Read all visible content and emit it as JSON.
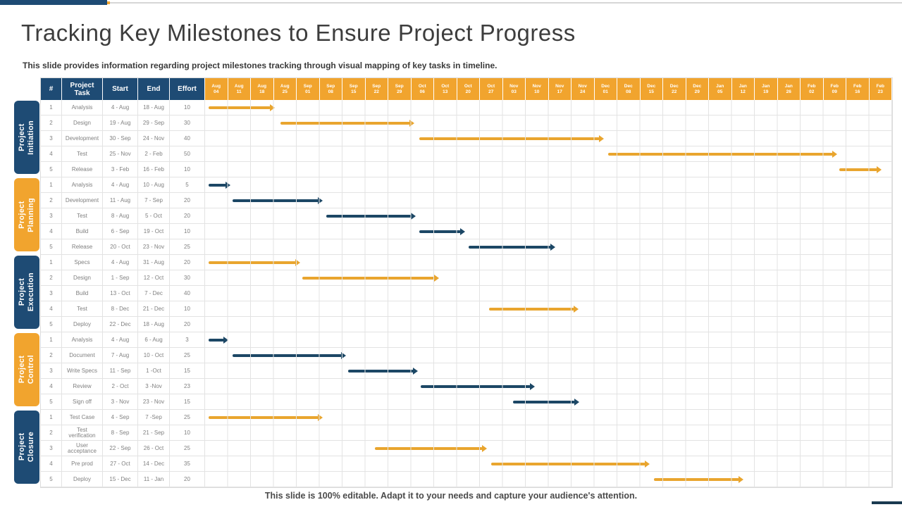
{
  "slide": {
    "title": "Tracking Key Milestones to Ensure Project Progress",
    "subtitle": "This slide provides information regarding project milestones tracking through visual mapping of key tasks in timeline.",
    "footer": "This slide is 100% editable. Adapt it to your needs and capture your audience's attention."
  },
  "colors": {
    "navy": "#1E4B74",
    "gold": "#F1A42E",
    "bar_navy": "#1C4765",
    "bar_gold": "#E9A52E",
    "grid": "#E3E3E3"
  },
  "chart_data": {
    "type": "table",
    "subtype": "gantt",
    "title": "Tracking Key Milestones to Ensure Project Progress",
    "columns": [
      "#",
      "Project Task",
      "Start",
      "End",
      "Effort"
    ],
    "week_columns": [
      "Aug 04",
      "Aug 11",
      "Aug 18",
      "Aug 25",
      "Sep 01",
      "Sep 08",
      "Sep 15",
      "Sep 22",
      "Sep 29",
      "Oct 06",
      "Oct 13",
      "Oct 20",
      "Oct 27",
      "Nov 03",
      "Nov 10",
      "Nov 17",
      "Nov 24",
      "Dec 01",
      "Dec 08",
      "Dec 15",
      "Dec 22",
      "Dec 29",
      "Jan 05",
      "Jan 12",
      "Jan 19",
      "Jan 26",
      "Feb 02",
      "Feb 09",
      "Feb 16",
      "Feb 23"
    ],
    "sections": [
      {
        "name": "Project Initiation",
        "accent": "navy",
        "rows": [
          {
            "num": "1",
            "task": "Analysis",
            "start": "4 - Aug",
            "end": "18 - Aug",
            "effort": "10",
            "bar": {
              "from": 0.15,
              "to": 3.05,
              "color": "gold"
            }
          },
          {
            "num": "2",
            "task": "Design",
            "start": "19 - Aug",
            "end": "29 - Sep",
            "effort": "30",
            "bar": {
              "from": 3.3,
              "to": 9.15,
              "color": "gold"
            }
          },
          {
            "num": "3",
            "task": "Development",
            "start": "30 - Sep",
            "end": "24 - Nov",
            "effort": "40",
            "bar": {
              "from": 9.35,
              "to": 17.4,
              "color": "gold"
            }
          },
          {
            "num": "4",
            "task": "Test",
            "start": "25 - Nov",
            "end": "2 - Feb",
            "effort": "50",
            "bar": {
              "from": 17.6,
              "to": 27.6,
              "color": "gold"
            }
          },
          {
            "num": "5",
            "task": "Release",
            "start": "3 - Feb",
            "end": "16 - Feb",
            "effort": "10",
            "bar": {
              "from": 27.7,
              "to": 29.55,
              "color": "gold"
            }
          }
        ]
      },
      {
        "name": "Project Planning",
        "accent": "gold",
        "rows": [
          {
            "num": "1",
            "task": "Analysis",
            "start": "4 - Aug",
            "end": "10 - Aug",
            "effort": "5",
            "bar": {
              "from": 0.15,
              "to": 1.1,
              "color": "navy"
            }
          },
          {
            "num": "2",
            "task": "Development",
            "start": "11 - Aug",
            "end": "7 - Sep",
            "effort": "20",
            "bar": {
              "from": 1.2,
              "to": 5.15,
              "color": "navy"
            }
          },
          {
            "num": "3",
            "task": "Test",
            "start": "8 - Aug",
            "end": "5 - Oct",
            "effort": "20",
            "bar": {
              "from": 5.3,
              "to": 9.2,
              "color": "navy"
            }
          },
          {
            "num": "4",
            "task": "Build",
            "start": "6 - Sep",
            "end": "19 - Oct",
            "effort": "10",
            "bar": {
              "from": 9.35,
              "to": 11.35,
              "color": "navy"
            }
          },
          {
            "num": "5",
            "task": "Release",
            "start": "20 - Oct",
            "end": "23 - Nov",
            "effort": "25",
            "bar": {
              "from": 11.5,
              "to": 15.3,
              "color": "navy"
            }
          }
        ]
      },
      {
        "name": "Project Execution",
        "accent": "navy",
        "rows": [
          {
            "num": "1",
            "task": "Specs",
            "start": "4 - Aug",
            "end": "31 - Aug",
            "effort": "20",
            "bar": {
              "from": 0.15,
              "to": 4.15,
              "color": "gold"
            }
          },
          {
            "num": "2",
            "task": "Design",
            "start": "1 - Sep",
            "end": "12 - Oct",
            "effort": "30",
            "bar": {
              "from": 4.25,
              "to": 10.2,
              "color": "gold"
            }
          },
          {
            "num": "3",
            "task": "Build",
            "start": "13 - Oct",
            "end": "7 - Dec",
            "effort": "40",
            "bar": null
          },
          {
            "num": "4",
            "task": "Test",
            "start": "8 - Dec",
            "end": "21 - Dec",
            "effort": "10",
            "bar": {
              "from": 12.4,
              "to": 16.3,
              "color": "gold"
            }
          },
          {
            "num": "5",
            "task": "Deploy",
            "start": "22 - Dec",
            "end": "18 - Aug",
            "effort": "20",
            "bar": null
          }
        ]
      },
      {
        "name": "Project Control",
        "accent": "gold",
        "rows": [
          {
            "num": "1",
            "task": "Analysis",
            "start": "4 - Aug",
            "end": "6 - Aug",
            "effort": "3",
            "bar": {
              "from": 0.15,
              "to": 1.0,
              "color": "navy"
            }
          },
          {
            "num": "2",
            "task": "Document",
            "start": "7 - Aug",
            "end": "10 - Oct",
            "effort": "25",
            "bar": {
              "from": 1.2,
              "to": 6.15,
              "color": "navy"
            }
          },
          {
            "num": "3",
            "task": "Write Specs",
            "start": "11 - Sep",
            "end": "1 -Oct",
            "effort": "15",
            "bar": {
              "from": 6.25,
              "to": 9.3,
              "color": "navy"
            }
          },
          {
            "num": "4",
            "task": "Review",
            "start": "2 - Oct",
            "end": "3 -Nov",
            "effort": "23",
            "bar": {
              "from": 9.4,
              "to": 14.4,
              "color": "navy"
            }
          },
          {
            "num": "5",
            "task": "Sign off",
            "start": "3 - Nov",
            "end": "23 - Nov",
            "effort": "15",
            "bar": {
              "from": 13.45,
              "to": 16.35,
              "color": "navy"
            }
          }
        ]
      },
      {
        "name": "Project Closure",
        "accent": "navy",
        "rows": [
          {
            "num": "1",
            "task": "Test Case",
            "start": "4 - Sep",
            "end": "7 -Sep",
            "effort": "25",
            "bar": {
              "from": 0.15,
              "to": 5.15,
              "color": "gold"
            }
          },
          {
            "num": "2",
            "task": "Test verification",
            "start": "8 - Sep",
            "end": "21 - Sep",
            "effort": "10",
            "bar": null
          },
          {
            "num": "3",
            "task": "User acceptance",
            "start": "22 - Sep",
            "end": "26 - Oct",
            "effort": "25",
            "bar": {
              "from": 7.4,
              "to": 12.3,
              "color": "gold"
            }
          },
          {
            "num": "4",
            "task": "Pre prod",
            "start": "27 - Oct",
            "end": "14 - Dec",
            "effort": "35",
            "bar": {
              "from": 12.5,
              "to": 19.4,
              "color": "gold"
            }
          },
          {
            "num": "5",
            "task": "Deploy",
            "start": "15 - Dec",
            "end": "11 - Jan",
            "effort": "20",
            "bar": {
              "from": 19.6,
              "to": 23.5,
              "color": "gold"
            }
          }
        ]
      }
    ]
  }
}
